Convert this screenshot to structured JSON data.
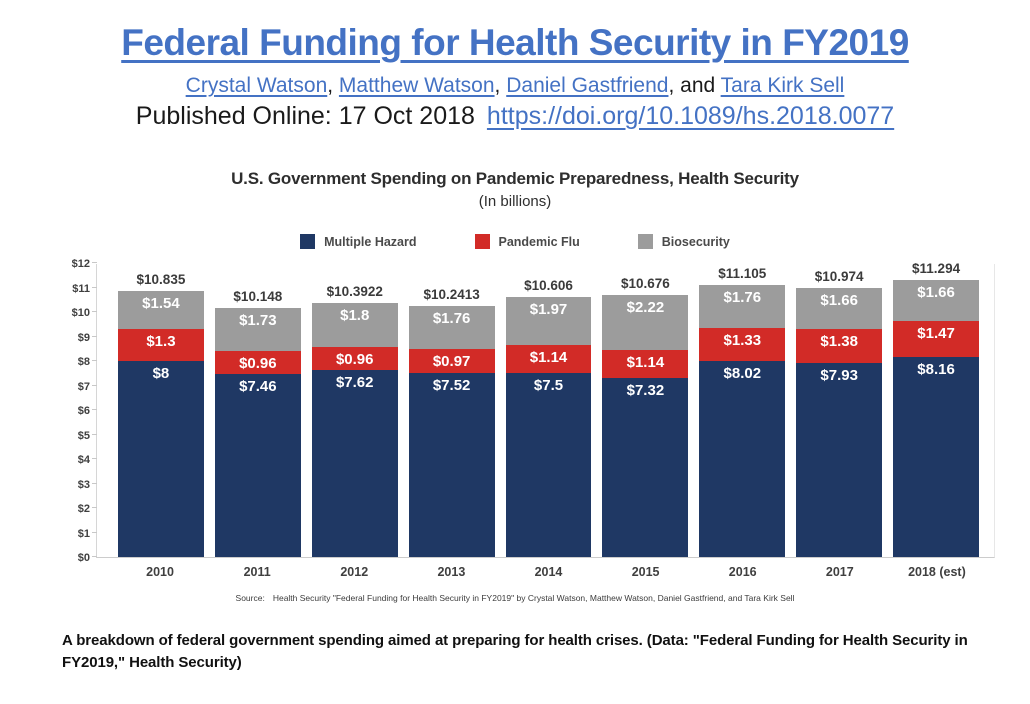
{
  "header": {
    "title": "Federal Funding for Health Security in FY2019",
    "authors": [
      {
        "name": "Crystal Watson",
        "suffix": ", "
      },
      {
        "name": "Matthew Watson",
        "suffix": ", "
      },
      {
        "name": "Daniel Gastfriend",
        "suffix": ", and "
      },
      {
        "name": "Tara Kirk Sell",
        "suffix": ""
      }
    ],
    "published_label": "Published Online: 17 Oct 2018",
    "doi_link": "https://doi.org/10.1089/hs.2018.0077"
  },
  "colors": {
    "accent_blue": "#4472c4",
    "multiple_hazard": "#1f3864",
    "pandemic_flu": "#d22b27",
    "biosecurity": "#9c9c9c"
  },
  "chart_data": {
    "type": "bar",
    "stacked": true,
    "title": "U.S. Government Spending on Pandemic Preparedness, Health Security",
    "subtitle": "(In billions)",
    "legend_position": "top",
    "grid": false,
    "ylim": [
      0,
      12
    ],
    "ytick_step": 1,
    "ytick_labels": [
      "$0",
      "$1",
      "$2",
      "$3",
      "$4",
      "$5",
      "$6",
      "$7",
      "$8",
      "$9",
      "$10",
      "$11",
      "$12"
    ],
    "categories": [
      "2010",
      "2011",
      "2012",
      "2013",
      "2014",
      "2015",
      "2016",
      "2017",
      "2018 (est)"
    ],
    "series": [
      {
        "name": "Multiple Hazard",
        "color": "#1f3864",
        "values": [
          8,
          7.46,
          7.62,
          7.52,
          7.5,
          7.32,
          8.02,
          7.93,
          8.16
        ],
        "labels": [
          "$8",
          "$7.46",
          "$7.62",
          "$7.52",
          "$7.5",
          "$7.32",
          "$8.02",
          "$7.93",
          "$8.16"
        ]
      },
      {
        "name": "Pandemic Flu",
        "color": "#d22b27",
        "values": [
          1.3,
          0.96,
          0.96,
          0.97,
          1.14,
          1.14,
          1.33,
          1.38,
          1.47
        ],
        "labels": [
          "$1.3",
          "$0.96",
          "$0.96",
          "$0.97",
          "$1.14",
          "$1.14",
          "$1.33",
          "$1.38",
          "$1.47"
        ]
      },
      {
        "name": "Biosecurity",
        "color": "#9c9c9c",
        "values": [
          1.54,
          1.73,
          1.8,
          1.76,
          1.97,
          2.22,
          1.76,
          1.66,
          1.66
        ],
        "labels": [
          "$1.54",
          "$1.73",
          "$1.8",
          "$1.76",
          "$1.97",
          "$2.22",
          "$1.76",
          "$1.66",
          "$1.66"
        ]
      }
    ],
    "totals": [
      "$10.835",
      "$10.148",
      "$10.3922",
      "$10.2413",
      "$10.606",
      "$10.676",
      "$11.105",
      "$10.974",
      "$11.294"
    ],
    "source_label": "Source:",
    "source_text": "Health Security \"Federal Funding for Health Security in FY2019\" by Crystal Watson, Matthew Watson, Daniel Gastfriend, and Tara Kirk Sell"
  },
  "caption": "A breakdown of federal government spending aimed at preparing for health crises. (Data: \"Federal Funding for Health Security in FY2019,\" Health Security)"
}
